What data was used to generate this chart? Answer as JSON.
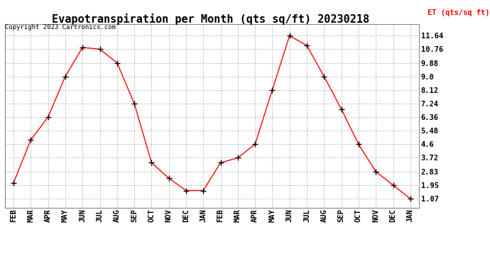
{
  "title": "Evapotranspiration per Month (qts sq/ft) 20230218",
  "legend_label": "ET (qts/sq ft)",
  "copyright_text": "Copyright 2023 Cartronics.com",
  "x_labels": [
    "FEB",
    "MAR",
    "APR",
    "MAY",
    "JUN",
    "JUL",
    "AUG",
    "SEP",
    "OCT",
    "NOV",
    "DEC",
    "JAN",
    "FEB",
    "MAR",
    "APR",
    "MAY",
    "JUN",
    "JUL",
    "AUG",
    "SEP",
    "OCT",
    "NOV",
    "DEC",
    "JAN"
  ],
  "y_values": [
    2.1,
    4.88,
    6.36,
    9.0,
    10.88,
    10.76,
    9.88,
    7.24,
    3.4,
    2.4,
    1.6,
    1.6,
    3.4,
    3.72,
    4.6,
    8.12,
    11.64,
    11.0,
    9.0,
    6.88,
    4.6,
    2.83,
    1.95,
    1.07
  ],
  "y_ticks": [
    1.07,
    1.95,
    2.83,
    3.72,
    4.6,
    5.48,
    6.36,
    7.24,
    8.12,
    9.0,
    9.88,
    10.76,
    11.64
  ],
  "ylim": [
    0.5,
    12.4
  ],
  "line_color": "red",
  "marker": "+",
  "marker_color": "black",
  "grid_color": "#bbbbbb",
  "bg_color": "#ffffff",
  "title_fontsize": 11,
  "tick_fontsize": 7.5,
  "legend_color": "red",
  "copyright_color": "black"
}
